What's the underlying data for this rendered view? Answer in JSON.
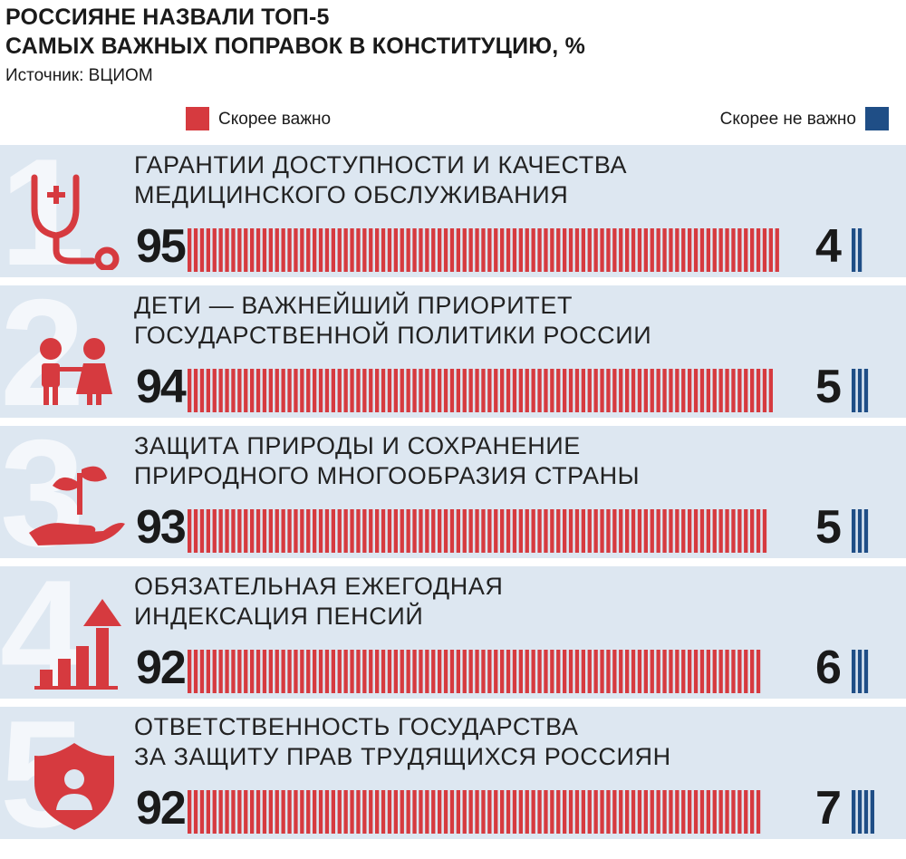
{
  "title_line1": "РОССИЯНЕ НАЗВАЛИ ТОП-5",
  "title_line2": "САМЫХ ВАЖНЫХ ПОПРАВОК В КОНСТИТУЦИЮ, %",
  "source": "Источник: ВЦИОМ",
  "legend": {
    "important": "Скорее важно",
    "not_important": "Скорее не важно"
  },
  "colors": {
    "important": "#d63a3f",
    "not_important": "#1f4e86",
    "row_background": "#dde7f1",
    "rank_numeral": "#f4f7fb"
  },
  "chart_data": {
    "type": "bar",
    "title": "РОССИЯНЕ НАЗВАЛИ ТОП-5 САМЫХ ВАЖНЫХ ПОПРАВОК В КОНСТИТУЦИЮ, %",
    "categories": [
      "ГАРАНТИИ ДОСТУПНОСТИ И КАЧЕСТВА МЕДИЦИНСКОГО ОБСЛУЖИВАНИЯ",
      "ДЕТИ — ВАЖНЕЙШИЙ ПРИОРИТЕТ ГОСУДАРСТВЕННОЙ ПОЛИТИКИ РОССИИ",
      "ЗАЩИТА ПРИРОДЫ И СОХРАНЕНИЕ ПРИРОДНОГО МНОГООБРАЗИЯ СТРАНЫ",
      "ОБЯЗАТЕЛЬНАЯ ЕЖЕГОДНАЯ ИНДЕКСАЦИЯ ПЕНСИЙ",
      "ОТВЕТСТВЕННОСТЬ ГОСУДАРСТВА ЗА ЗАЩИТУ ПРАВ ТРУДЯЩИХСЯ РОССИЯН"
    ],
    "series": [
      {
        "name": "Скорее важно",
        "values": [
          95,
          94,
          93,
          92,
          92
        ]
      },
      {
        "name": "Скорее не важно",
        "values": [
          4,
          5,
          5,
          6,
          7
        ]
      }
    ],
    "ylim": [
      0,
      100
    ],
    "legend": "top"
  },
  "rows": [
    {
      "rank": "1",
      "label": "ГАРАНТИИ ДОСТУПНОСТИ И КАЧЕСТВА\nМЕДИЦИНСКОГО ОБСЛУЖИВАНИЯ",
      "important": "95",
      "not_important": "4",
      "icon": "stethoscope-icon"
    },
    {
      "rank": "2",
      "label": "ДЕТИ — ВАЖНЕЙШИЙ ПРИОРИТЕТ\nГОСУДАРСТВЕННОЙ ПОЛИТИКИ РОССИИ",
      "important": "94",
      "not_important": "5",
      "icon": "children-icon"
    },
    {
      "rank": "3",
      "label": "ЗАЩИТА ПРИРОДЫ И СОХРАНЕНИЕ\nПРИРОДНОГО МНОГООБРАЗИЯ СТРАНЫ",
      "important": "93",
      "not_important": "5",
      "icon": "hand-sprout-icon"
    },
    {
      "rank": "4",
      "label": "ОБЯЗАТЕЛЬНАЯ ЕЖЕГОДНАЯ\nИНДЕКСАЦИЯ ПЕНСИЙ",
      "important": "92",
      "not_important": "6",
      "icon": "growth-chart-icon"
    },
    {
      "rank": "5",
      "label": "ОТВЕТСТВЕННОСТЬ ГОСУДАРСТВА\nЗА ЗАЩИТУ ПРАВ ТРУДЯЩИХСЯ РОССИЯН",
      "important": "92",
      "not_important": "7",
      "icon": "shield-person-icon"
    }
  ]
}
